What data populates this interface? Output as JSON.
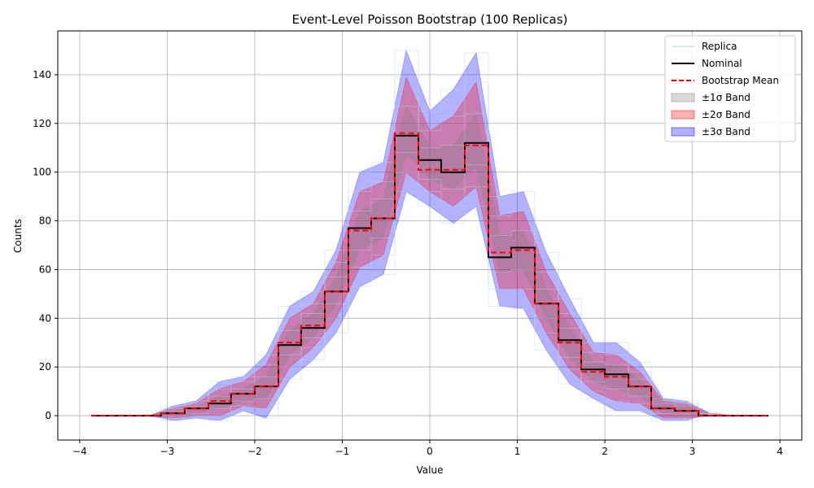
{
  "chart_data": {
    "type": "line",
    "title": "Event-Level Poisson Bootstrap (100 Replicas)",
    "xlabel": "Value",
    "ylabel": "Counts",
    "xlim": [
      -4.25,
      4.25
    ],
    "ylim": [
      -10,
      158
    ],
    "xticks": [
      -4,
      -3,
      -2,
      -1,
      0,
      1,
      2,
      3,
      4
    ],
    "yticks": [
      0,
      20,
      40,
      60,
      80,
      100,
      120,
      140
    ],
    "grid": true,
    "legend_position": "top-right",
    "step": "post",
    "bin_edges": [
      -3.87,
      -3.6,
      -3.33,
      -3.07,
      -2.8,
      -2.53,
      -2.27,
      -2.0,
      -1.73,
      -1.47,
      -1.2,
      -0.93,
      -0.67,
      -0.4,
      -0.13,
      0.13,
      0.4,
      0.67,
      0.93,
      1.2,
      1.47,
      1.73,
      2.0,
      2.27,
      2.53,
      2.8,
      3.07,
      3.33,
      3.6,
      3.87
    ],
    "x_centers": [
      -3.73,
      -3.47,
      -3.2,
      -2.93,
      -2.67,
      -2.4,
      -2.13,
      -1.87,
      -1.6,
      -1.33,
      -1.07,
      -0.8,
      -0.53,
      -0.27,
      0.0,
      0.27,
      0.53,
      0.8,
      1.07,
      1.33,
      1.6,
      1.87,
      2.13,
      2.4,
      2.67,
      2.93,
      3.2,
      3.47,
      3.73
    ],
    "series": [
      {
        "name": "Nominal",
        "color": "#000000",
        "style": "solid step",
        "values": [
          0,
          0,
          0,
          1,
          3,
          5,
          9,
          12,
          29,
          36,
          51,
          77,
          81,
          115,
          105,
          100,
          112,
          65,
          69,
          46,
          31,
          19,
          17,
          12,
          3,
          2,
          0,
          0,
          0
        ]
      },
      {
        "name": "Bootstrap Mean",
        "color": "#ff0000",
        "style": "dashed step",
        "values": [
          0,
          0,
          0,
          1,
          3,
          6,
          9,
          12,
          30,
          37,
          51,
          76,
          81,
          116,
          101,
          101,
          111,
          67,
          68,
          46,
          30,
          18,
          16,
          12,
          3,
          2,
          0,
          0,
          0
        ]
      }
    ],
    "bands": [
      {
        "name": "±3σ Band",
        "color": "#0000ff",
        "opacity": 0.3,
        "lower": [
          0,
          0,
          0,
          -2,
          -1,
          -2,
          2,
          -1,
          15,
          23,
          34,
          53,
          58,
          92,
          86,
          79,
          86,
          45,
          44,
          27,
          13,
          7,
          2,
          2,
          -2,
          -2,
          1,
          0,
          0
        ],
        "upper": [
          0,
          0,
          0,
          4,
          6,
          14,
          16,
          25,
          45,
          51,
          68,
          100,
          104,
          150,
          125,
          134,
          149,
          90,
          92,
          67,
          48,
          30,
          30,
          22,
          7,
          6,
          1,
          0,
          0
        ]
      },
      {
        "name": "±2σ Band",
        "color": "#ff0000",
        "opacity": 0.3,
        "lower": [
          0,
          0,
          0,
          -1,
          0,
          0,
          4,
          3,
          20,
          28,
          40,
          61,
          66,
          100,
          92,
          86,
          94,
          52,
          52,
          34,
          19,
          10,
          6,
          5,
          -1,
          -1,
          0,
          0,
          0
        ],
        "upper": [
          0,
          0,
          0,
          3,
          5,
          11,
          14,
          21,
          40,
          46,
          63,
          92,
          96,
          139,
          117,
          123,
          137,
          82,
          84,
          59,
          42,
          26,
          25,
          18,
          6,
          5,
          1,
          0,
          0
        ]
      },
      {
        "name": "±1σ Band",
        "color": "#808080",
        "opacity": 0.3,
        "lower": [
          0,
          0,
          0,
          0,
          1,
          3,
          6,
          7,
          25,
          32,
          46,
          68,
          73,
          108,
          97,
          93,
          103,
          59,
          60,
          40,
          24,
          14,
          11,
          8,
          1,
          1,
          0,
          0,
          0
        ],
        "upper": [
          0,
          0,
          0,
          2,
          4,
          8,
          11,
          16,
          35,
          42,
          57,
          84,
          89,
          127,
          110,
          111,
          124,
          74,
          76,
          52,
          36,
          22,
          21,
          15,
          5,
          4,
          0,
          0,
          0
        ]
      }
    ],
    "replica_legend": {
      "name": "Replica",
      "color": "#add8e6"
    },
    "legend": [
      "Replica",
      "Nominal",
      "Bootstrap Mean",
      "±1σ Band",
      "±2σ Band",
      "±3σ Band"
    ]
  }
}
